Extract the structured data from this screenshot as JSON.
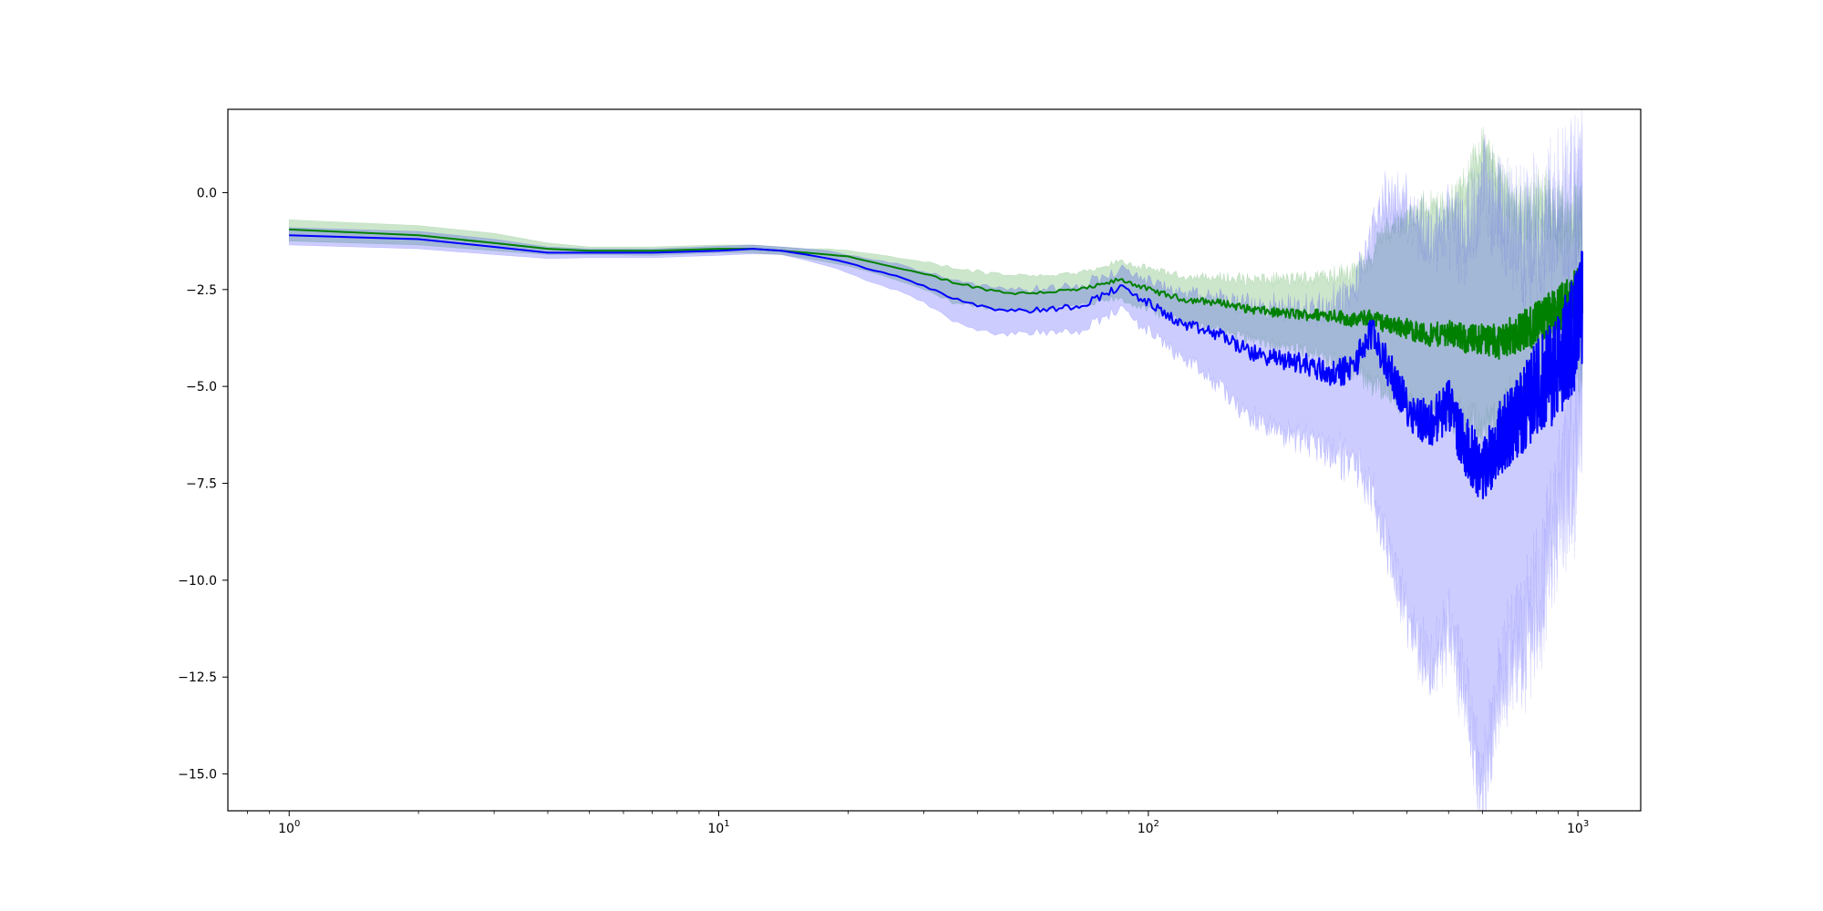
{
  "chart_data": {
    "type": "line",
    "title": "",
    "xlabel": "",
    "ylabel": "",
    "xscale": "log",
    "xlim": [
      0.72,
      1400
    ],
    "ylim": [
      -15.95,
      2.15
    ],
    "grid": false,
    "legend": "none",
    "x_ticks": [
      {
        "base": "10",
        "exp": "0",
        "value": 1
      },
      {
        "base": "10",
        "exp": "1",
        "value": 10
      },
      {
        "base": "10",
        "exp": "2",
        "value": 100
      },
      {
        "base": "10",
        "exp": "3",
        "value": 1000
      }
    ],
    "y_ticks": [
      {
        "label": "0.0",
        "value": 0
      },
      {
        "label": "−2.5",
        "value": -2.5
      },
      {
        "label": "−5.0",
        "value": -5
      },
      {
        "label": "−7.5",
        "value": -7.5
      },
      {
        "label": "−10.0",
        "value": -10
      },
      {
        "label": "−12.5",
        "value": -12.5
      },
      {
        "label": "−15.0",
        "value": -15
      }
    ],
    "series": [
      {
        "color": "#008000",
        "band_color": "#008000",
        "x": [
          1,
          2,
          3,
          4,
          5,
          7,
          10,
          12,
          14,
          16,
          18,
          20,
          22,
          25,
          30,
          35,
          40,
          45,
          50,
          60,
          70,
          80,
          85,
          90,
          100,
          120,
          150,
          170,
          200,
          230,
          270,
          300,
          330,
          350,
          400,
          450,
          500,
          550,
          600,
          650,
          700,
          750,
          800,
          850,
          900,
          950,
          1000,
          1024
        ],
        "y": [
          -0.95,
          -1.1,
          -1.3,
          -1.45,
          -1.5,
          -1.5,
          -1.45,
          -1.45,
          -1.5,
          -1.55,
          -1.6,
          -1.65,
          -1.75,
          -1.9,
          -2.1,
          -2.3,
          -2.45,
          -2.55,
          -2.6,
          -2.55,
          -2.5,
          -2.35,
          -2.25,
          -2.3,
          -2.5,
          -2.75,
          -2.85,
          -3.0,
          -3.1,
          -3.15,
          -3.15,
          -3.3,
          -3.2,
          -3.35,
          -3.5,
          -3.7,
          -3.6,
          -3.8,
          -3.75,
          -3.85,
          -3.7,
          -3.55,
          -3.4,
          -3.2,
          -3.05,
          -2.9,
          -2.6,
          -2.4
        ],
        "lower": [
          -1.25,
          -1.35,
          -1.5,
          -1.6,
          -1.6,
          -1.62,
          -1.55,
          -1.55,
          -1.6,
          -1.7,
          -1.8,
          -1.9,
          -2.0,
          -2.2,
          -2.5,
          -2.8,
          -2.9,
          -3.0,
          -3.0,
          -2.95,
          -2.9,
          -2.75,
          -2.7,
          -2.8,
          -3.0,
          -3.3,
          -3.5,
          -3.7,
          -3.9,
          -4.0,
          -4.2,
          -4.5,
          -4.8,
          -5.0,
          -5.3,
          -5.6,
          -5.5,
          -5.8,
          -5.9,
          -5.7,
          -5.3,
          -5.0,
          -4.8,
          -4.6,
          -4.3,
          -4.0,
          -3.8,
          -3.6
        ],
        "upper": [
          -0.7,
          -0.85,
          -1.05,
          -1.3,
          -1.4,
          -1.4,
          -1.35,
          -1.35,
          -1.4,
          -1.45,
          -1.45,
          -1.5,
          -1.55,
          -1.65,
          -1.8,
          -1.95,
          -2.05,
          -2.1,
          -2.15,
          -2.15,
          -2.1,
          -1.95,
          -1.8,
          -1.85,
          -2.0,
          -2.2,
          -2.25,
          -2.3,
          -2.3,
          -2.3,
          -2.2,
          -2.15,
          -1.8,
          -1.2,
          -0.8,
          -0.5,
          -0.6,
          0.0,
          1.0,
          0.2,
          -0.5,
          -0.8,
          -0.6,
          -0.7,
          -1.1,
          -1.0,
          -1.0,
          -1.1
        ]
      },
      {
        "color": "#0000ff",
        "band_color": "#0000ff",
        "x": [
          1,
          2,
          3,
          4,
          5,
          7,
          10,
          12,
          14,
          16,
          18,
          20,
          22,
          25,
          30,
          35,
          40,
          45,
          50,
          60,
          70,
          80,
          85,
          90,
          100,
          120,
          150,
          170,
          200,
          230,
          270,
          300,
          330,
          350,
          400,
          450,
          500,
          550,
          600,
          650,
          700,
          750,
          800,
          850,
          900,
          950,
          1000,
          1024
        ],
        "y": [
          -1.1,
          -1.2,
          -1.4,
          -1.55,
          -1.55,
          -1.55,
          -1.5,
          -1.45,
          -1.5,
          -1.6,
          -1.7,
          -1.8,
          -1.95,
          -2.1,
          -2.4,
          -2.7,
          -2.9,
          -3.0,
          -3.05,
          -3.0,
          -2.9,
          -2.6,
          -2.45,
          -2.55,
          -2.85,
          -3.4,
          -3.7,
          -4.1,
          -4.3,
          -4.4,
          -4.7,
          -4.5,
          -3.6,
          -4.2,
          -5.5,
          -6.0,
          -5.5,
          -6.6,
          -7.2,
          -6.4,
          -6.0,
          -5.6,
          -5.0,
          -4.8,
          -4.5,
          -3.9,
          -3.4,
          -3.0
        ],
        "lower": [
          -1.35,
          -1.45,
          -1.6,
          -1.7,
          -1.68,
          -1.68,
          -1.62,
          -1.58,
          -1.6,
          -1.75,
          -1.9,
          -2.05,
          -2.25,
          -2.45,
          -2.8,
          -3.25,
          -3.5,
          -3.6,
          -3.6,
          -3.55,
          -3.5,
          -3.15,
          -2.95,
          -3.1,
          -3.5,
          -4.2,
          -5.0,
          -5.7,
          -6.0,
          -6.2,
          -6.5,
          -6.8,
          -7.5,
          -8.5,
          -10.5,
          -12.0,
          -11.0,
          -12.5,
          -15.1,
          -12.5,
          -11.5,
          -11.0,
          -10.0,
          -9.0,
          -7.5,
          -6.5,
          -5.8,
          -5.2
        ],
        "upper": [
          -0.9,
          -1.0,
          -1.2,
          -1.4,
          -1.45,
          -1.45,
          -1.38,
          -1.35,
          -1.4,
          -1.45,
          -1.5,
          -1.6,
          -1.7,
          -1.8,
          -2.05,
          -2.25,
          -2.4,
          -2.45,
          -2.55,
          -2.5,
          -2.4,
          -2.2,
          -2.05,
          -2.15,
          -2.3,
          -2.7,
          -2.85,
          -3.0,
          -3.1,
          -3.2,
          -3.1,
          -2.8,
          -1.5,
          -0.5,
          -0.6,
          -1.5,
          -1.2,
          -1.5,
          -0.2,
          -0.8,
          -1.5,
          -1.8,
          -1.6,
          -1.5,
          -1.4,
          -1.2,
          -1.2,
          -1.3
        ]
      }
    ]
  }
}
